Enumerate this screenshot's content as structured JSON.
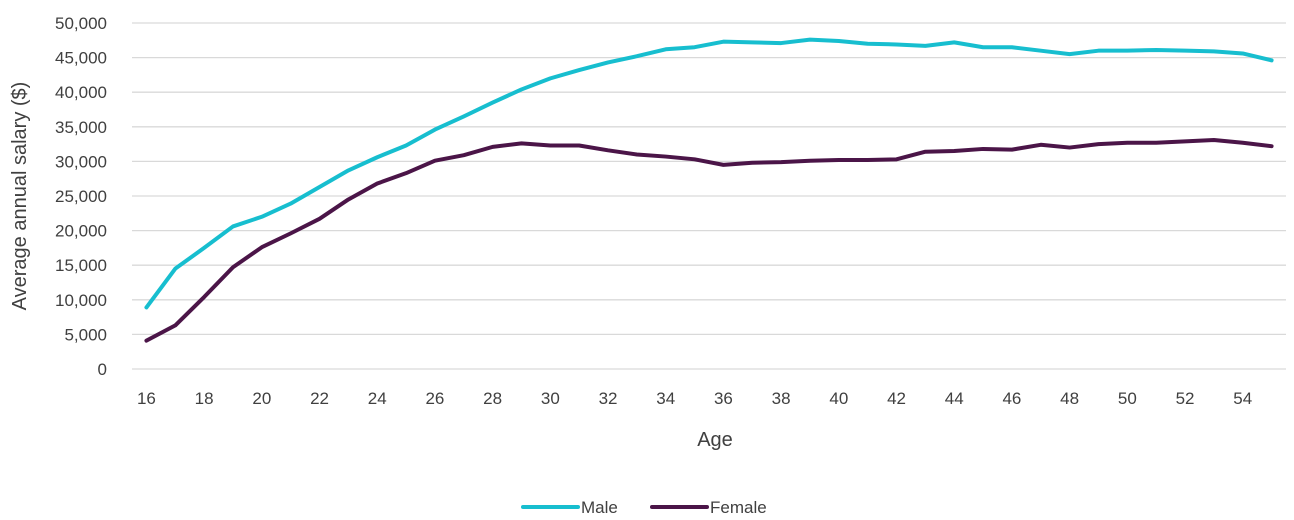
{
  "chart_data": {
    "type": "line",
    "title": "",
    "xlabel": "Age",
    "ylabel": "Average annual salary ($)",
    "x": [
      16,
      17,
      18,
      19,
      20,
      21,
      22,
      23,
      24,
      25,
      26,
      27,
      28,
      29,
      30,
      31,
      32,
      33,
      34,
      35,
      36,
      37,
      38,
      39,
      40,
      41,
      42,
      43,
      44,
      45,
      46,
      47,
      48,
      49,
      50,
      51,
      52,
      53,
      54,
      55
    ],
    "x_tick_labels": [
      "16",
      "18",
      "20",
      "22",
      "24",
      "26",
      "28",
      "30",
      "32",
      "34",
      "36",
      "38",
      "40",
      "42",
      "44",
      "46",
      "48",
      "50",
      "52",
      "54"
    ],
    "y_tick_labels": [
      "0",
      "5,000",
      "10,000",
      "15,000",
      "20,000",
      "25,000",
      "30,000",
      "35,000",
      "40,000",
      "45,000",
      "50,000"
    ],
    "ylim": [
      0,
      50000
    ],
    "grid": "horizontal",
    "legend_position": "bottom-center",
    "series": [
      {
        "name": "Male",
        "color": "#17becf",
        "values": [
          8900,
          14500,
          17500,
          20600,
          22000,
          23900,
          26300,
          28700,
          30600,
          32300,
          34600,
          36500,
          38500,
          40400,
          42000,
          43200,
          44300,
          45200,
          46200,
          46500,
          47300,
          47200,
          47100,
          47600,
          47400,
          47000,
          46900,
          46700,
          47200,
          46500,
          46500,
          46000,
          45500,
          46000,
          46000,
          46100,
          46000,
          45900,
          45600,
          44600
        ]
      },
      {
        "name": "Female",
        "color": "#4b1548",
        "values": [
          4100,
          6300,
          10400,
          14700,
          17600,
          19600,
          21700,
          24500,
          26800,
          28300,
          30100,
          30900,
          32100,
          32600,
          32300,
          32300,
          31600,
          31000,
          30700,
          30300,
          29500,
          29800,
          29900,
          30100,
          30200,
          30200,
          30300,
          31400,
          31500,
          31800,
          31700,
          32400,
          32000,
          32500,
          32700,
          32700,
          32900,
          33100,
          32700,
          32200
        ]
      }
    ]
  }
}
